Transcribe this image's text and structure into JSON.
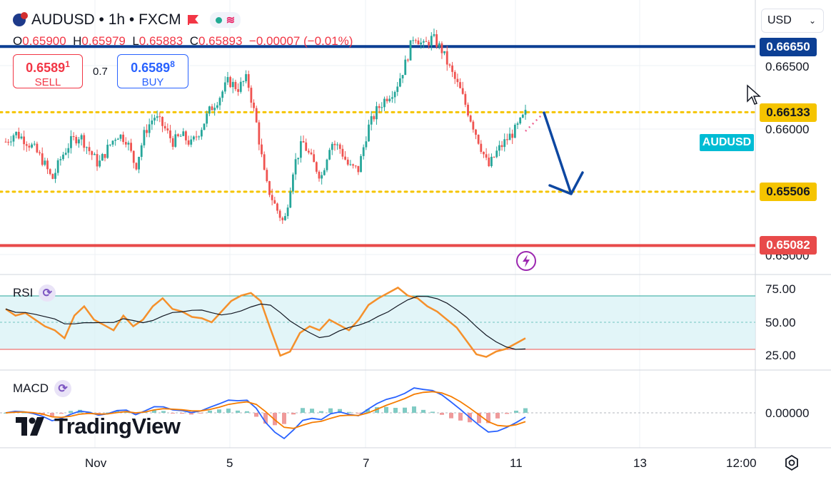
{
  "header": {
    "symbol_line": "AUDUSD • 1h • FXCM",
    "ohlc": {
      "o_label": "O",
      "o": "0.65900",
      "h_label": "H",
      "h": "0.65979",
      "l_label": "L",
      "l": "0.65883",
      "c_label": "C",
      "c": "0.65893",
      "change": "−0.00007 (−0.01%)"
    }
  },
  "trade": {
    "sell_price_main": "0.6589",
    "sell_price_sup": "1",
    "sell_label": "SELL",
    "buy_price_main": "0.6589",
    "buy_price_sup": "8",
    "buy_label": "BUY",
    "spread": "0.7"
  },
  "currency": "USD",
  "symbol_tag": "AUDUSD",
  "logo_text": "TradingView",
  "colors": {
    "up": "#26a69a",
    "down": "#ef5350",
    "level_blue": "#0c3f94",
    "level_yellow": "#f5c400",
    "level_red": "#e84a4a",
    "rsi_line": "#f5902b",
    "rsi_sma": "#131722",
    "macd_line": "#2962ff",
    "signal_line": "#f57c00",
    "arrow": "#0d47a1"
  },
  "chart_data": {
    "type": "candlestick",
    "symbol": "AUDUSD",
    "timeframe": "1h",
    "ylim": [
      0.65,
      0.668
    ],
    "price_ticks": [
      "0.66500",
      "0.66000",
      "0.65000"
    ],
    "levels": [
      {
        "value": 0.6665,
        "label": "0.66650",
        "style": "solid",
        "color": "#0c3f94"
      },
      {
        "value": 0.66133,
        "label": "0.66133",
        "style": "dotted",
        "color": "#f5c400"
      },
      {
        "value": 0.65506,
        "label": "0.65506",
        "style": "dotted",
        "color": "#f5c400"
      },
      {
        "value": 0.65082,
        "label": "0.65082",
        "style": "solid",
        "color": "#e84a4a"
      }
    ],
    "x_ticks": [
      "Nov",
      "5",
      "7",
      "11",
      "13",
      "12:00"
    ],
    "close_path": [
      0.659,
      0.6597,
      0.6592,
      0.6585,
      0.6575,
      0.656,
      0.6578,
      0.659,
      0.6595,
      0.6583,
      0.6572,
      0.6585,
      0.6596,
      0.6592,
      0.657,
      0.6598,
      0.661,
      0.6602,
      0.659,
      0.6595,
      0.6588,
      0.66,
      0.6615,
      0.6625,
      0.6638,
      0.6632,
      0.664,
      0.6605,
      0.6558,
      0.654,
      0.6525,
      0.657,
      0.659,
      0.6575,
      0.6562,
      0.659,
      0.6585,
      0.657,
      0.6568,
      0.66,
      0.6615,
      0.6625,
      0.6632,
      0.665,
      0.6675,
      0.6665,
      0.6672,
      0.6662,
      0.6645,
      0.663,
      0.661,
      0.659,
      0.657,
      0.6583,
      0.6592,
      0.66,
      0.6612
    ],
    "rsi": {
      "label": "RSI",
      "ticks": [
        "75.00",
        "50.00",
        "25.00"
      ],
      "upper": 70,
      "lower": 30,
      "values": [
        60,
        55,
        57,
        52,
        47,
        44,
        38,
        55,
        62,
        52,
        48,
        44,
        55,
        47,
        52,
        62,
        68,
        60,
        58,
        54,
        53,
        50,
        58,
        66,
        70,
        72,
        66,
        45,
        25,
        28,
        42,
        47,
        44,
        52,
        48,
        44,
        52,
        63,
        68,
        72,
        76,
        70,
        68,
        62,
        58,
        52,
        46,
        36,
        26,
        24,
        28,
        30,
        34,
        38
      ]
    },
    "macd": {
      "label": "MACD",
      "ticks": [
        "0.00000"
      ]
    }
  }
}
